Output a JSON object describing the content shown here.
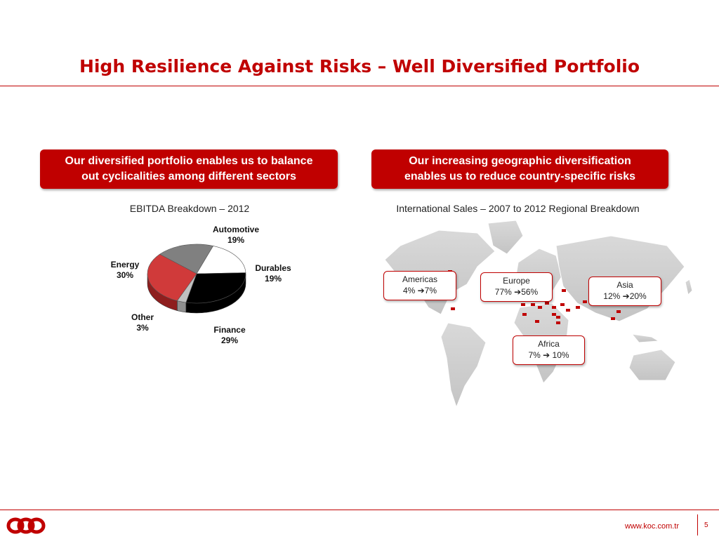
{
  "slide": {
    "title": "High Resilience Against Risks – Well Diversified Portfolio",
    "page_number": "5",
    "footer_url": "www.koc.com.tr"
  },
  "left_panel": {
    "banner_line1": "Our diversified portfolio enables us to balance",
    "banner_line2": "out cyclicalities among different sectors",
    "chart_title": "EBITDA Breakdown – 2012"
  },
  "right_panel": {
    "banner_line1": "Our increasing geographic diversification",
    "banner_line2": "enables us to reduce country-specific risks",
    "map_title": "International Sales – 2007 to 2012 Regional Breakdown",
    "regions": [
      {
        "name": "Americas",
        "change": "4% ➔7%"
      },
      {
        "name": "Europe",
        "change": "77% ➔56%"
      },
      {
        "name": "Asia",
        "change": "12% ➔20%"
      },
      {
        "name": "Africa",
        "change": "7% ➔ 10%"
      }
    ]
  },
  "colors": {
    "brand_red": "#c00000",
    "automotive": "#808080",
    "durables": "#ffffff",
    "finance": "#000000",
    "other": "#c0c0c0",
    "energy": "#d03a3a"
  },
  "chart_data": {
    "type": "pie",
    "title": "EBITDA Breakdown – 2012",
    "slices": [
      {
        "label": "Automotive",
        "value": 19,
        "display": "19%"
      },
      {
        "label": "Durables",
        "value": 19,
        "display": "19%"
      },
      {
        "label": "Finance",
        "value": 29,
        "display": "29%"
      },
      {
        "label": "Other",
        "value": 3,
        "display": "3%"
      },
      {
        "label": "Energy",
        "value": 30,
        "display": "30%"
      }
    ]
  }
}
